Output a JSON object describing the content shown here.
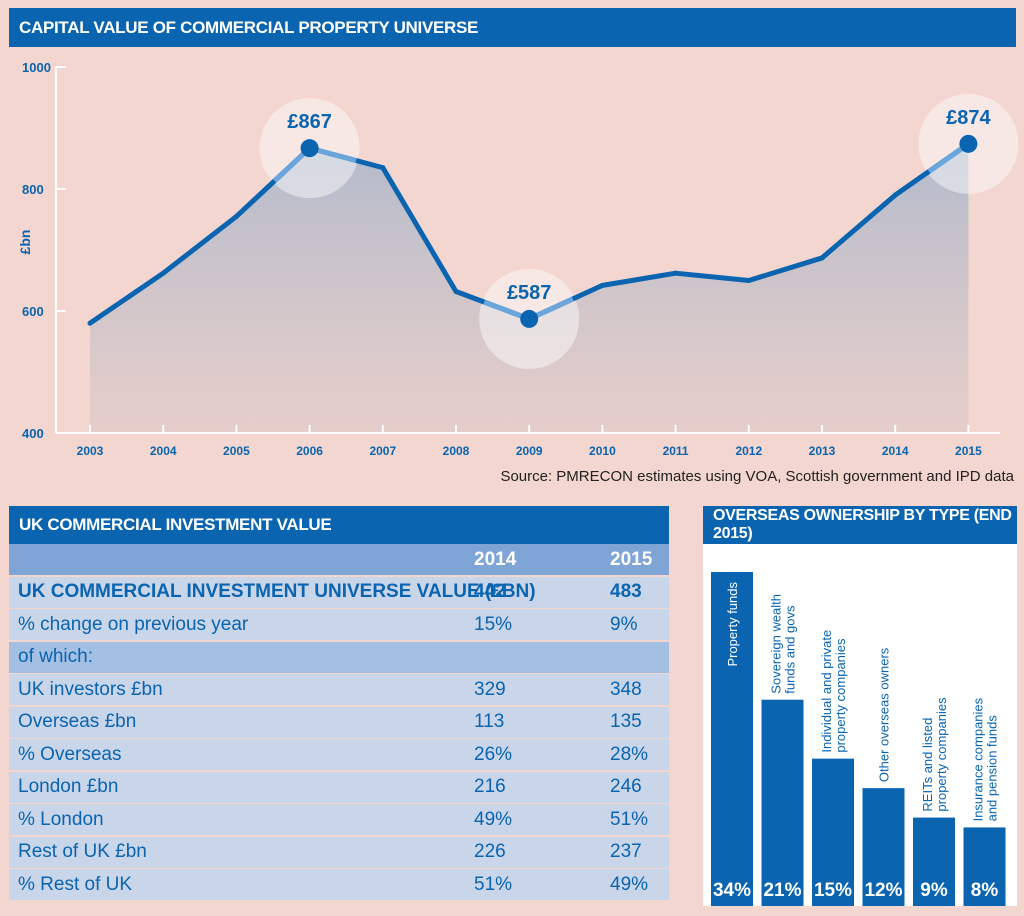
{
  "chart_data": [
    {
      "type": "line",
      "title": "CAPITAL VALUE OF COMMERCIAL PROPERTY UNIVERSE",
      "ylabel": "£bn",
      "ylim": [
        400,
        1000
      ],
      "yticks": [
        "400",
        "600",
        "800",
        "1000"
      ],
      "x": [
        "2003",
        "2004",
        "2005",
        "2006",
        "2007",
        "2008",
        "2009",
        "2010",
        "2011",
        "2012",
        "2013",
        "2014",
        "2015"
      ],
      "values": [
        580,
        662,
        755,
        867,
        835,
        632,
        587,
        642,
        662,
        650,
        687,
        790,
        874
      ],
      "highlights": [
        {
          "year": "2006",
          "label": "£867"
        },
        {
          "year": "2009",
          "label": "£587"
        },
        {
          "year": "2015",
          "label": "£874"
        }
      ],
      "line_color": "#0a64b0",
      "source": "Source: PMRECON estimates using VOA, Scottish government and IPD data"
    },
    {
      "type": "bar",
      "title": "OVERSEAS OWNERSHIP BY TYPE (END 2015)",
      "categories": [
        [
          "Property funds"
        ],
        [
          "Sovereign wealth",
          "funds and govs"
        ],
        [
          "Individual and private",
          "property companies"
        ],
        [
          "Other overseas owners"
        ],
        [
          "REITs and listed",
          "property companies"
        ],
        [
          "Insurance companies",
          "and pension funds"
        ]
      ],
      "values": [
        34,
        21,
        15,
        12,
        9,
        8
      ],
      "value_labels": [
        "34%",
        "21%",
        "15%",
        "12%",
        "9%",
        "8%"
      ],
      "bar_color": "#0a64b0"
    }
  ],
  "table": {
    "title": "UK COMMERCIAL INVESTMENT VALUE",
    "columns": [
      "",
      "2014",
      "2015"
    ],
    "rows": [
      {
        "label": "UK COMMERCIAL INVESTMENT UNIVERSE VALUE (£BN)",
        "v2014": "442",
        "v2015": "483",
        "style": "big"
      },
      {
        "label": "% change on previous year",
        "v2014": "15%",
        "v2015": "9%",
        "style": ""
      },
      {
        "label": "of which:",
        "v2014": "",
        "v2015": "",
        "style": "mid"
      },
      {
        "label": "UK investors £bn",
        "v2014": "329",
        "v2015": "348",
        "style": ""
      },
      {
        "label": "Overseas £bn",
        "v2014": "113",
        "v2015": "135",
        "style": ""
      },
      {
        "label": "% Overseas",
        "v2014": "26%",
        "v2015": "28%",
        "style": ""
      },
      {
        "label": "London £bn",
        "v2014": "216",
        "v2015": "246",
        "style": ""
      },
      {
        "label": "% London",
        "v2014": "49%",
        "v2015": "51%",
        "style": ""
      },
      {
        "label": "Rest of UK £bn",
        "v2014": "226",
        "v2015": "237",
        "style": ""
      },
      {
        "label": "% Rest of UK",
        "v2014": "51%",
        "v2015": "49%",
        "style": ""
      }
    ]
  }
}
